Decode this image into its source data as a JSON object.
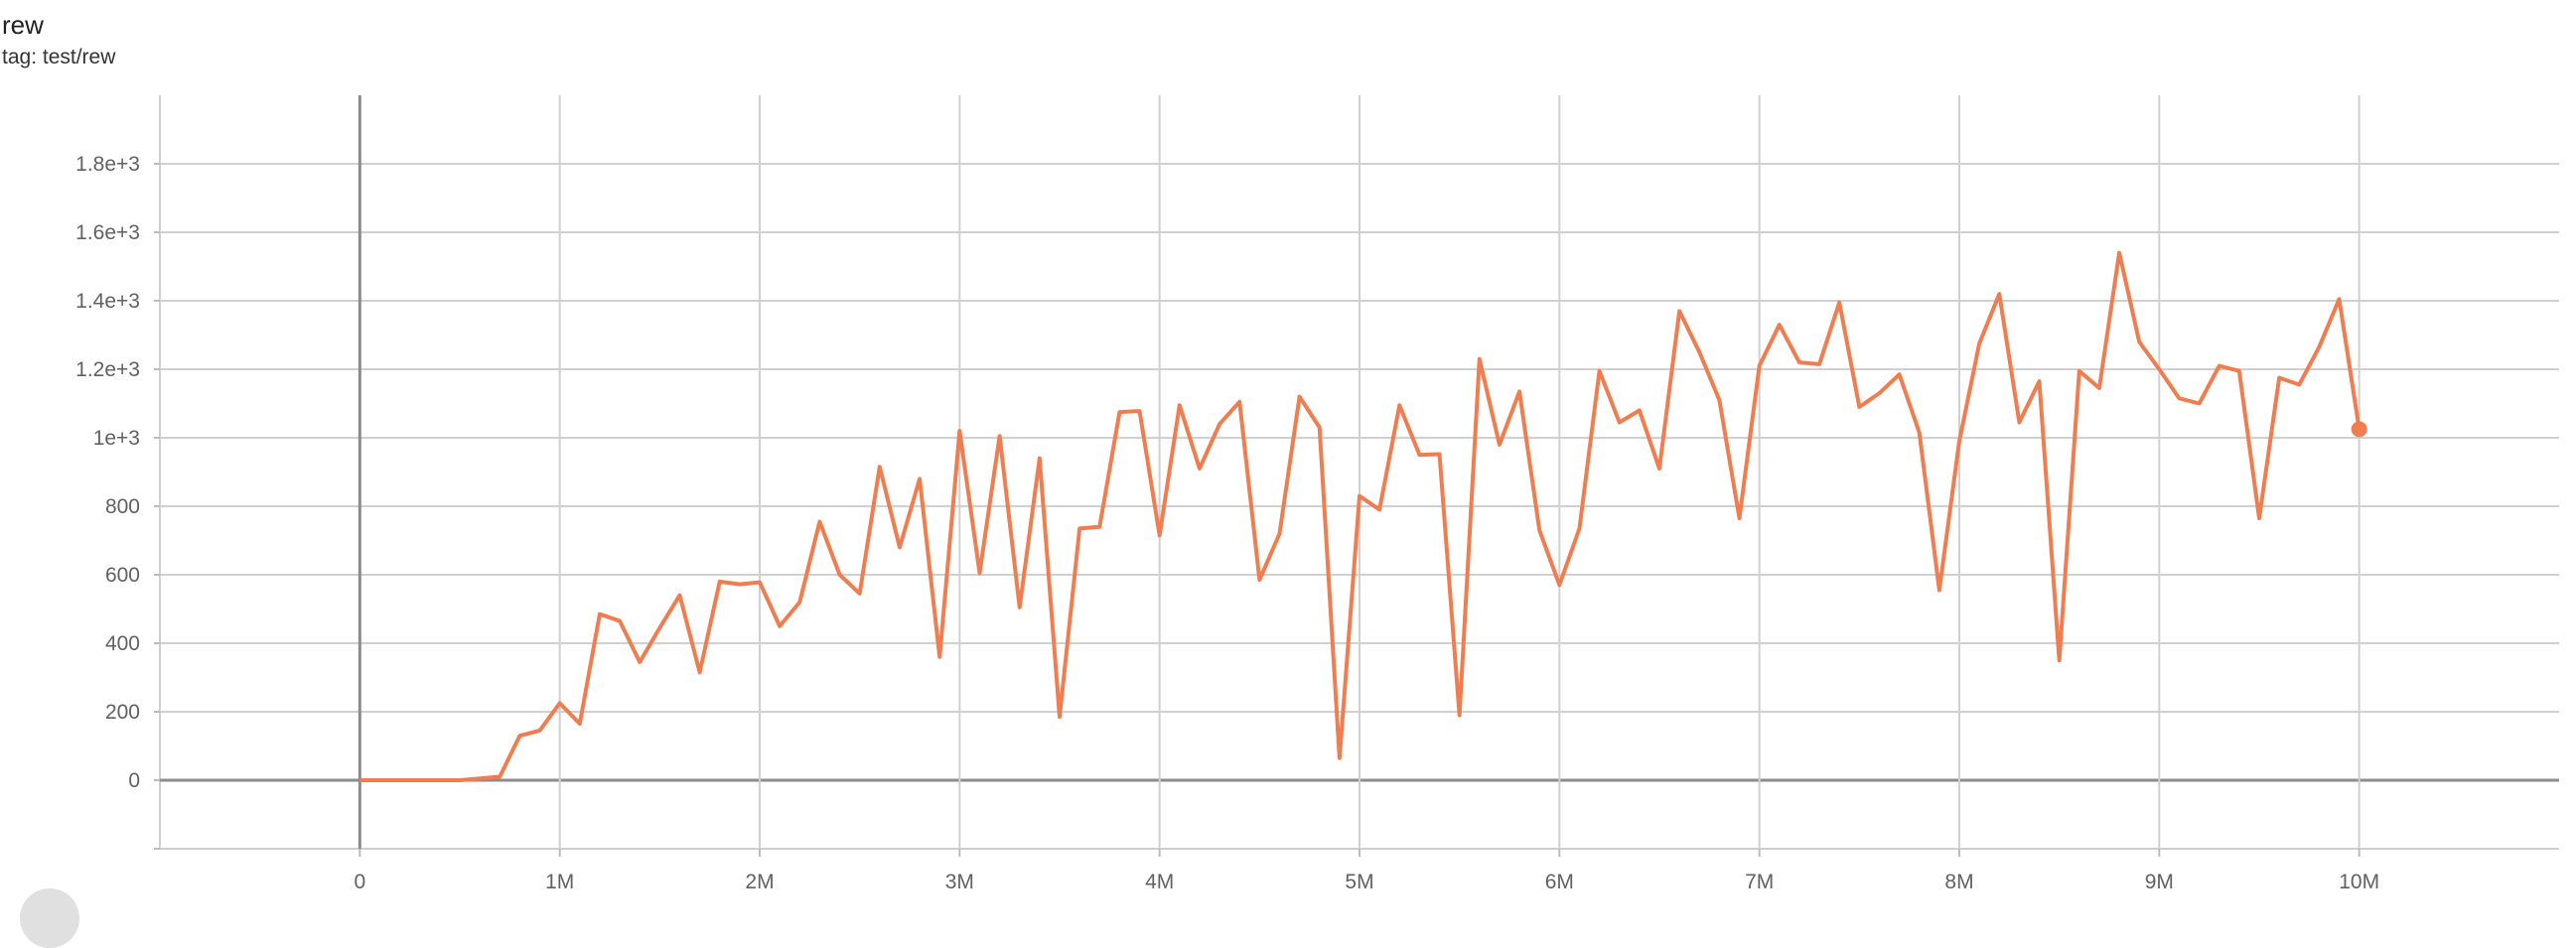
{
  "card": {
    "title": "rew",
    "tag": "tag: test/rew"
  },
  "chart_data": {
    "type": "line",
    "title": "rew",
    "xlabel": "",
    "ylabel": "",
    "xlim": [
      -1000000,
      11000000
    ],
    "ylim": [
      -200,
      2000
    ],
    "grid": true,
    "legend": "none",
    "line_color": "#f07d4f",
    "x_ticks": [
      0,
      1000000,
      2000000,
      3000000,
      4000000,
      5000000,
      6000000,
      7000000,
      8000000,
      9000000,
      10000000
    ],
    "x_tick_labels": [
      "0",
      "1M",
      "2M",
      "3M",
      "4M",
      "5M",
      "6M",
      "7M",
      "8M",
      "9M",
      "10M"
    ],
    "y_ticks": [
      0,
      200,
      400,
      600,
      800,
      1000,
      1200,
      1400,
      1600,
      1800
    ],
    "y_tick_labels": [
      "0",
      "200",
      "400",
      "600",
      "800",
      "1e+3",
      "1.2e+3",
      "1.4e+3",
      "1.6e+3",
      "1.8e+3"
    ],
    "x_step_millions": [
      0,
      0.1,
      0.2,
      0.3,
      0.4,
      0.5,
      0.6,
      0.7,
      0.8,
      0.9,
      1.0,
      1.1,
      1.2,
      1.3,
      1.4,
      1.5,
      1.6,
      1.7,
      1.8,
      1.9,
      2.0,
      2.1,
      2.2,
      2.3,
      2.4,
      2.5,
      2.6,
      2.7,
      2.8,
      2.9,
      3.0,
      3.1,
      3.2,
      3.3,
      3.4,
      3.5,
      3.6,
      3.7,
      3.8,
      3.9,
      4.0,
      4.1,
      4.2,
      4.3,
      4.4,
      4.5,
      4.6,
      4.7,
      4.8,
      4.9,
      5.0,
      5.1,
      5.2,
      5.3,
      5.4,
      5.5,
      5.6,
      5.7,
      5.8,
      5.9,
      6.0,
      6.1,
      6.2,
      6.3,
      6.4,
      6.5,
      6.6,
      6.7,
      6.8,
      6.9,
      7.0,
      7.1,
      7.2,
      7.3,
      7.4,
      7.5,
      7.6,
      7.7,
      7.8,
      7.9,
      8.0,
      8.1,
      8.2,
      8.3,
      8.4,
      8.5,
      8.6,
      8.7,
      8.8,
      8.9,
      9.0,
      9.1,
      9.2,
      9.3,
      9.4,
      9.5,
      9.6,
      9.7,
      9.8,
      9.9,
      10.0
    ],
    "values": [
      0,
      0,
      0,
      0,
      0,
      0,
      5,
      10,
      130,
      145,
      225,
      165,
      485,
      465,
      345,
      445,
      540,
      315,
      580,
      572,
      578,
      450,
      520,
      755,
      600,
      545,
      915,
      680,
      880,
      360,
      1020,
      605,
      1005,
      505,
      940,
      185,
      735,
      740,
      1075,
      1078,
      715,
      1095,
      910,
      1040,
      1105,
      585,
      720,
      1120,
      1030,
      65,
      830,
      790,
      1095,
      950,
      952,
      190,
      1230,
      980,
      1135,
      730,
      570,
      735,
      1195,
      1045,
      1080,
      910,
      1370,
      1250,
      1110,
      765,
      1210,
      1330,
      1220,
      1215,
      1395,
      1090,
      1130,
      1185,
      1015,
      555,
      990,
      1275,
      1420,
      1045,
      1165,
      350,
      1195,
      1145,
      1540,
      1280,
      1200,
      1115,
      1100,
      1210,
      1195,
      765,
      1175,
      1155,
      1265,
      1405,
      1025
    ]
  }
}
